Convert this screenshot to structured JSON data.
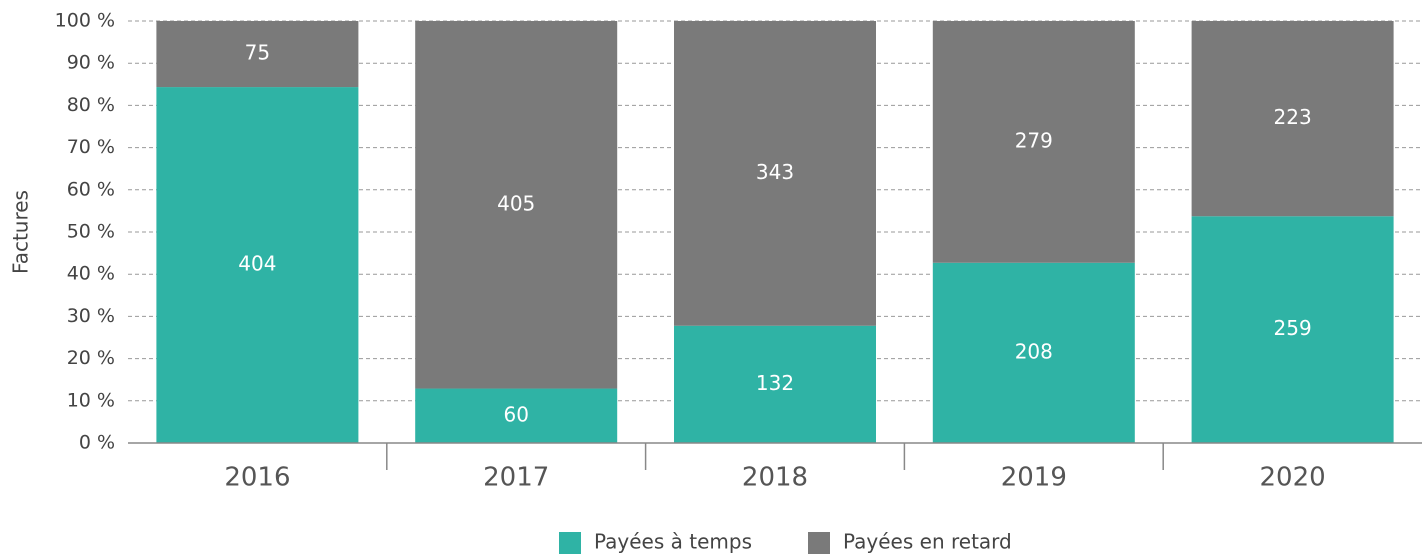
{
  "chart_data": {
    "type": "bar",
    "stacking": "percent",
    "y_label": "Factures",
    "categories": [
      "2016",
      "2017",
      "2018",
      "2019",
      "2020"
    ],
    "series": [
      {
        "name": "Payées à temps",
        "color": "#2fb3a5",
        "values": [
          404,
          60,
          132,
          208,
          259
        ]
      },
      {
        "name": "Payées en retard",
        "color": "#7a7a7a",
        "values": [
          75,
          405,
          343,
          279,
          223
        ]
      }
    ],
    "ylim": [
      0,
      100
    ],
    "yticks": [
      {
        "value": 0,
        "label": "0 %"
      },
      {
        "value": 10,
        "label": "10 %"
      },
      {
        "value": 20,
        "label": "20 %"
      },
      {
        "value": 30,
        "label": "30 %"
      },
      {
        "value": 40,
        "label": "40 %"
      },
      {
        "value": 50,
        "label": "50 %"
      },
      {
        "value": 60,
        "label": "60 %"
      },
      {
        "value": 70,
        "label": "70 %"
      },
      {
        "value": 80,
        "label": "80 %"
      },
      {
        "value": 90,
        "label": "90 %"
      },
      {
        "value": 100,
        "label": "100 %"
      }
    ],
    "grid": true,
    "legend": "bottom"
  }
}
